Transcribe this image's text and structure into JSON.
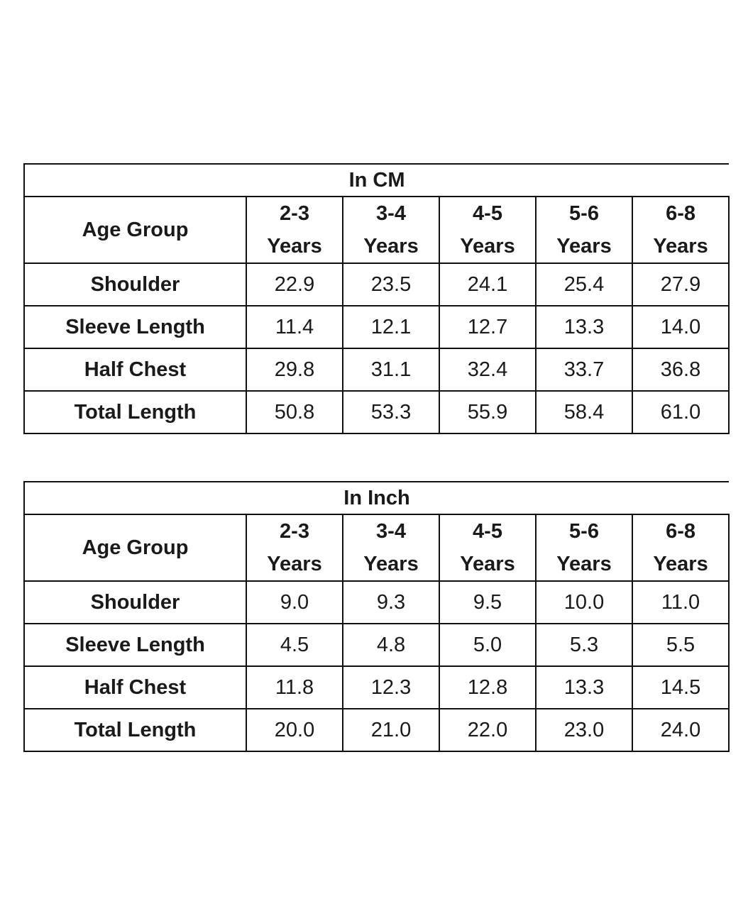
{
  "tables": [
    {
      "title": "In CM",
      "header_label": "Age Group",
      "columns": [
        {
          "range": "2-3",
          "unit": "Years"
        },
        {
          "range": "3-4",
          "unit": "Years"
        },
        {
          "range": "4-5",
          "unit": "Years"
        },
        {
          "range": "5-6",
          "unit": "Years"
        },
        {
          "range": "6-8",
          "unit": "Years"
        }
      ],
      "rows": [
        {
          "label": "Shoulder",
          "values": [
            "22.9",
            "23.5",
            "24.1",
            "25.4",
            "27.9"
          ]
        },
        {
          "label": "Sleeve Length",
          "values": [
            "11.4",
            "12.1",
            "12.7",
            "13.3",
            "14.0"
          ]
        },
        {
          "label": "Half Chest",
          "values": [
            "29.8",
            "31.1",
            "32.4",
            "33.7",
            "36.8"
          ]
        },
        {
          "label": "Total Length",
          "values": [
            "50.8",
            "53.3",
            "55.9",
            "58.4",
            "61.0"
          ]
        }
      ]
    },
    {
      "title": "In Inch",
      "header_label": "Age Group",
      "columns": [
        {
          "range": "2-3",
          "unit": "Years"
        },
        {
          "range": "3-4",
          "unit": "Years"
        },
        {
          "range": "4-5",
          "unit": "Years"
        },
        {
          "range": "5-6",
          "unit": "Years"
        },
        {
          "range": "6-8",
          "unit": "Years"
        }
      ],
      "rows": [
        {
          "label": "Shoulder",
          "values": [
            "9.0",
            "9.3",
            "9.5",
            "10.0",
            "11.0"
          ]
        },
        {
          "label": "Sleeve Length",
          "values": [
            "4.5",
            "4.8",
            "5.0",
            "5.3",
            "5.5"
          ]
        },
        {
          "label": "Half Chest",
          "values": [
            "11.8",
            "12.3",
            "12.8",
            "13.3",
            "14.5"
          ]
        },
        {
          "label": "Total Length",
          "values": [
            "20.0",
            "21.0",
            "22.0",
            "23.0",
            "24.0"
          ]
        }
      ]
    }
  ]
}
